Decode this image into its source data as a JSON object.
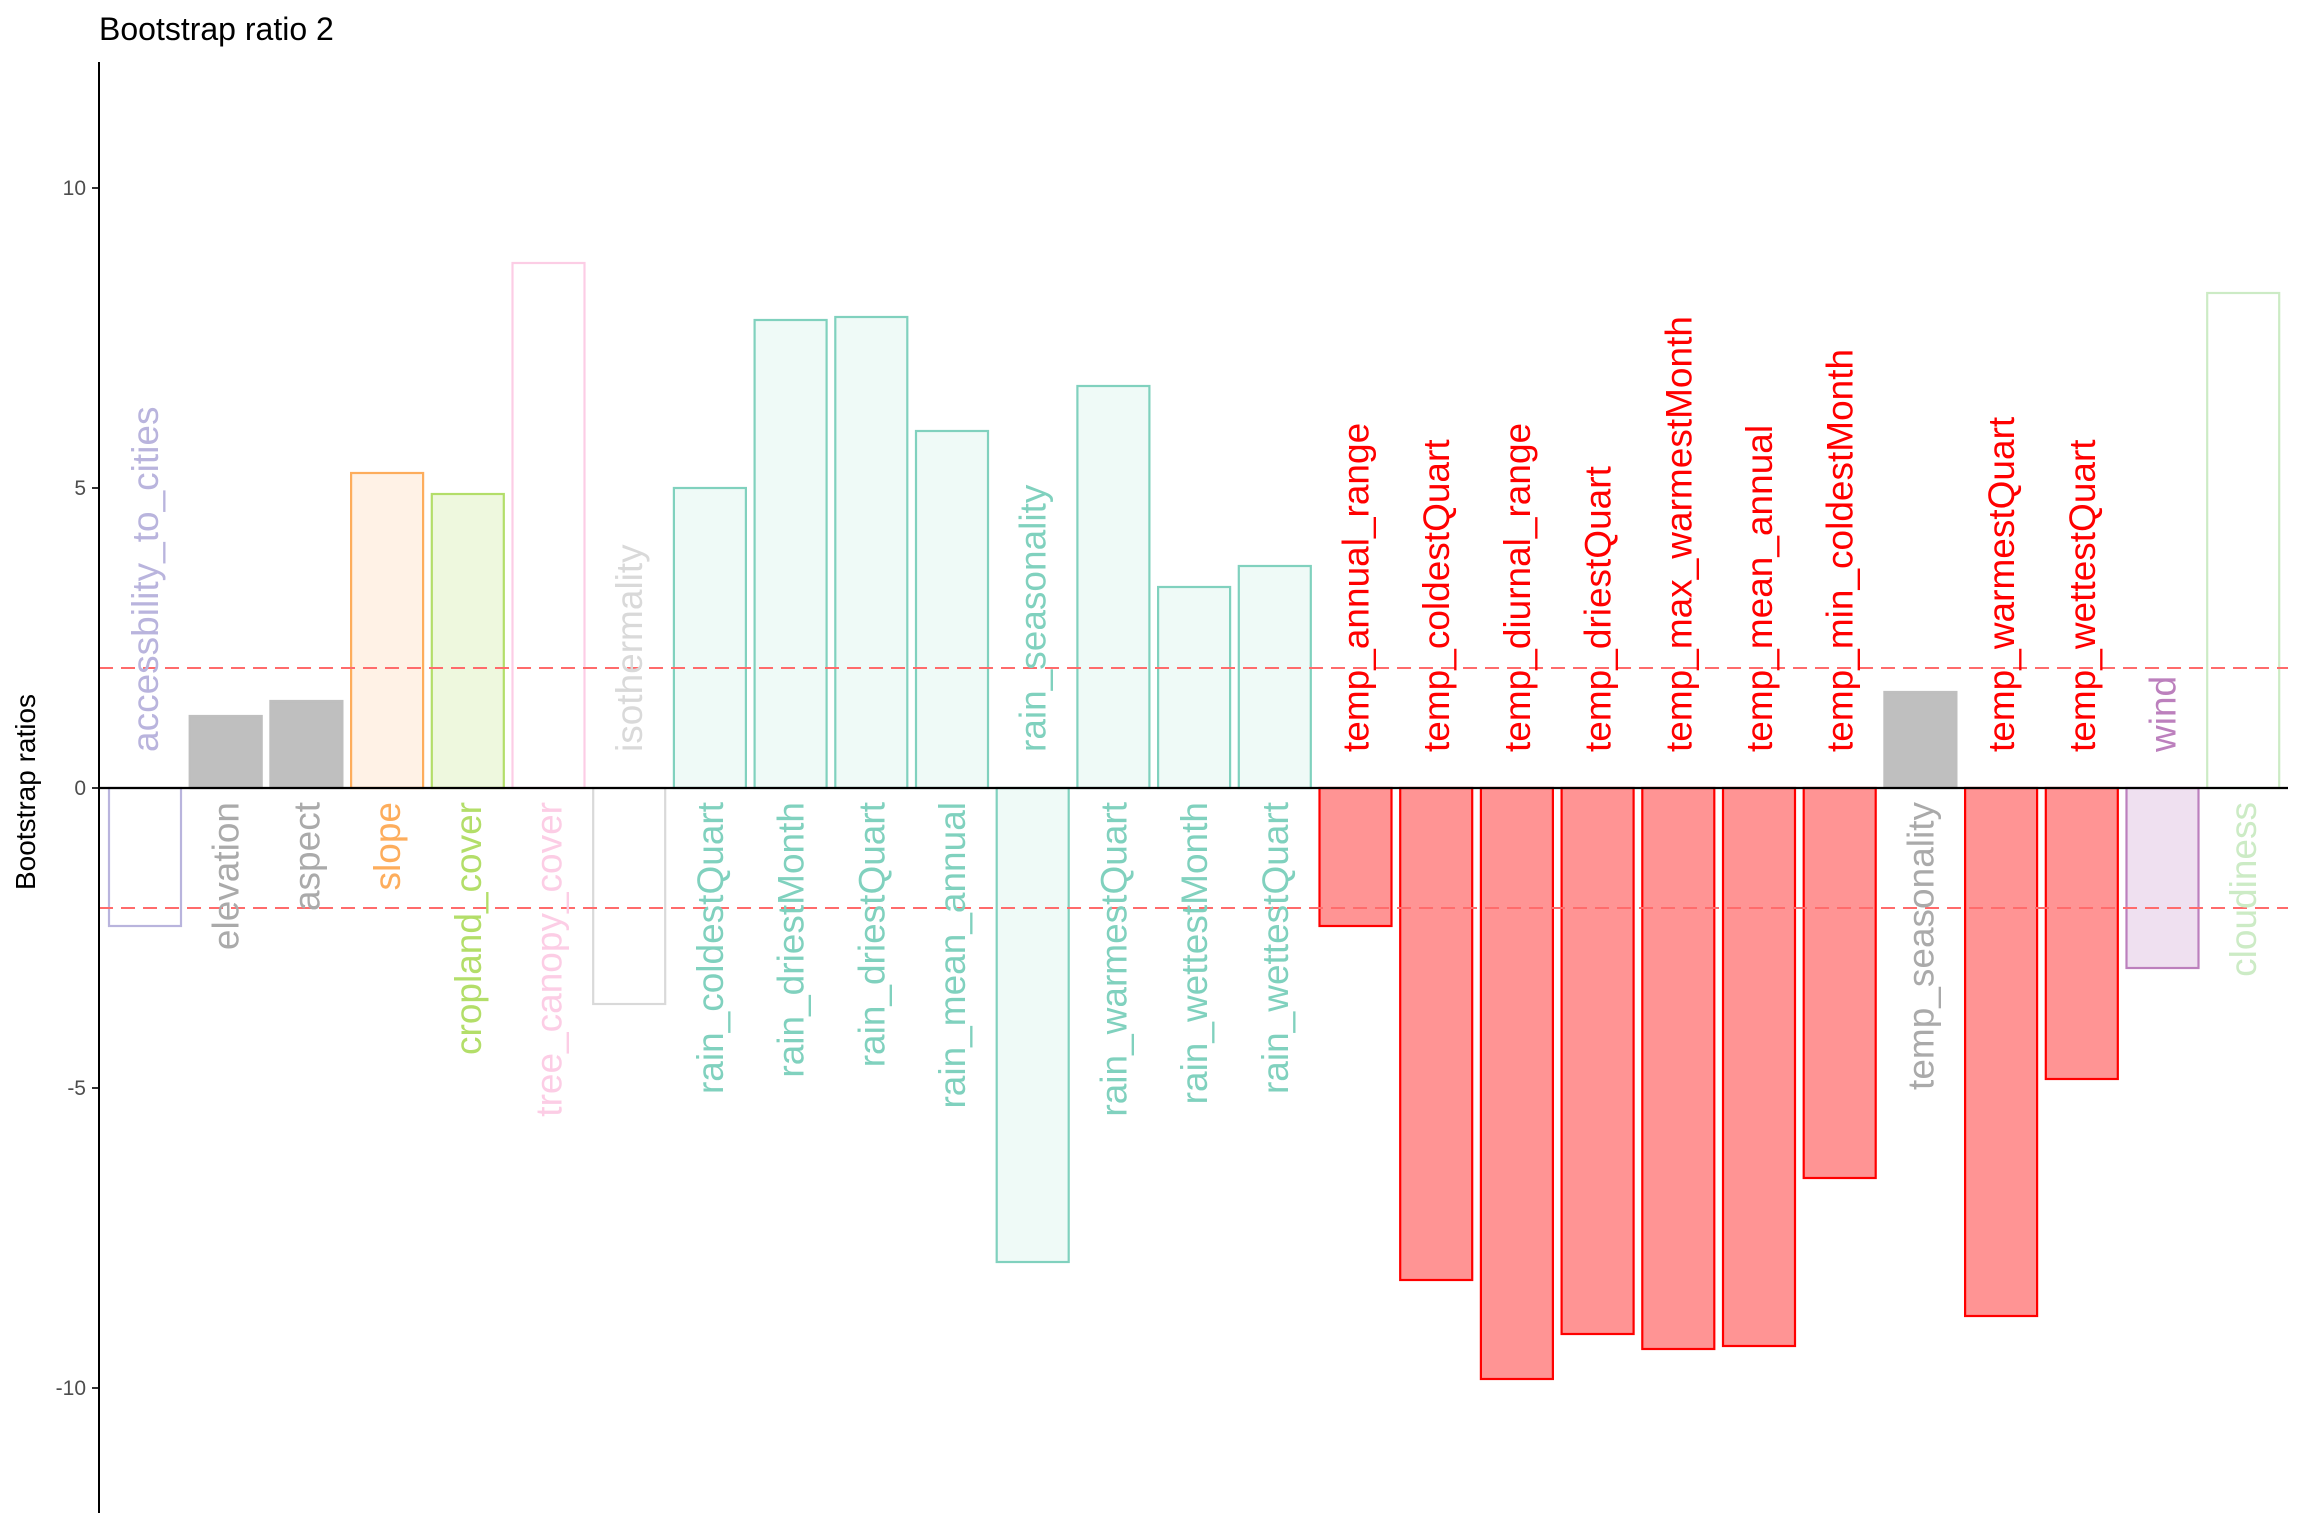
{
  "chart_data": {
    "type": "bar",
    "title": "Bootstrap ratio 2",
    "xlabel": "",
    "ylabel": "Bootstrap ratios",
    "ylim": [
      -12.2,
      12.2
    ],
    "yticks": [
      10,
      5,
      0,
      -5,
      -10
    ],
    "ytick_labels": [
      "10",
      "5",
      "0",
      "-5",
      "-10"
    ],
    "threshold_lines": [
      2,
      -2
    ],
    "threshold_color": "#ff6b6b",
    "grid": false,
    "legend": "none",
    "categories": [
      "accessbility_to_cities",
      "elevation",
      "aspect",
      "slope",
      "cropland_cover",
      "tree_canopy_cover",
      "isothermality",
      "rain_coldestQuart",
      "rain_driestMonth",
      "rain_driestQuart",
      "rain_mean_annual",
      "rain_seasonality",
      "rain_warmestQuart",
      "rain_wettestMonth",
      "rain_wettestQuart",
      "temp_annual_range",
      "temp_coldestQuart",
      "temp_diurnal_range",
      "temp_driestQuart",
      "temp_max_warmestMonth",
      "temp_mean_annual",
      "temp_min_coldestMonth",
      "temp_seasonality",
      "temp_warmestQuart",
      "temp_wettestQuart",
      "wind",
      "cloudiness"
    ],
    "values": [
      -2.3,
      1.2,
      1.45,
      5.25,
      4.9,
      8.75,
      -3.6,
      5.0,
      7.8,
      7.85,
      5.95,
      -7.9,
      6.7,
      3.35,
      3.7,
      -2.3,
      -8.2,
      -9.85,
      -9.1,
      -9.35,
      -9.3,
      -6.5,
      1.6,
      -8.8,
      -4.85,
      -3.0,
      8.25
    ],
    "fill_colors": [
      "#ffffff",
      "#bfbfbf",
      "#bfbfbf",
      "#fff2e6",
      "#eef8de",
      "#ffffff",
      "#ffffff",
      "#effaf7",
      "#effaf7",
      "#effaf7",
      "#effaf7",
      "#effaf7",
      "#effaf7",
      "#effaf7",
      "#effaf7",
      "#ff9494",
      "#ff9494",
      "#ff9494",
      "#ff9494",
      "#ff9494",
      "#ff9494",
      "#ff9494",
      "#bfbfbf",
      "#ff9494",
      "#ff9494",
      "#efe0f0",
      "#ffffff"
    ],
    "stroke_colors": [
      "#b9b4dd",
      "#bfbfbf",
      "#bfbfbf",
      "#fdad5c",
      "#b3de69",
      "#fccde5",
      "#d9d9d9",
      "#80d1be",
      "#80d1be",
      "#80d1be",
      "#80d1be",
      "#80d1be",
      "#80d1be",
      "#80d1be",
      "#80d1be",
      "#ff0000",
      "#ff0000",
      "#ff0000",
      "#ff0000",
      "#ff0000",
      "#ff0000",
      "#ff0000",
      "#bfbfbf",
      "#ff0000",
      "#ff0000",
      "#bc80bd",
      "#ccebc5"
    ],
    "label_colors": [
      "#b9b4dd",
      "#aaaaaa",
      "#aaaaaa",
      "#fdad5c",
      "#b3de69",
      "#fccde5",
      "#d9d9d9",
      "#80d1be",
      "#80d1be",
      "#80d1be",
      "#80d1be",
      "#80d1be",
      "#80d1be",
      "#80d1be",
      "#80d1be",
      "#ff0000",
      "#ff0000",
      "#ff0000",
      "#ff0000",
      "#ff0000",
      "#ff0000",
      "#ff0000",
      "#aaaaaa",
      "#ff0000",
      "#ff0000",
      "#bc80bd",
      "#ccebc5"
    ],
    "label_side": [
      "above",
      "below",
      "below",
      "below",
      "below",
      "below",
      "above",
      "below",
      "below",
      "below",
      "below",
      "above",
      "below",
      "below",
      "below",
      "above",
      "above",
      "above",
      "above",
      "above",
      "above",
      "above",
      "below",
      "above",
      "above",
      "above",
      "below"
    ]
  }
}
